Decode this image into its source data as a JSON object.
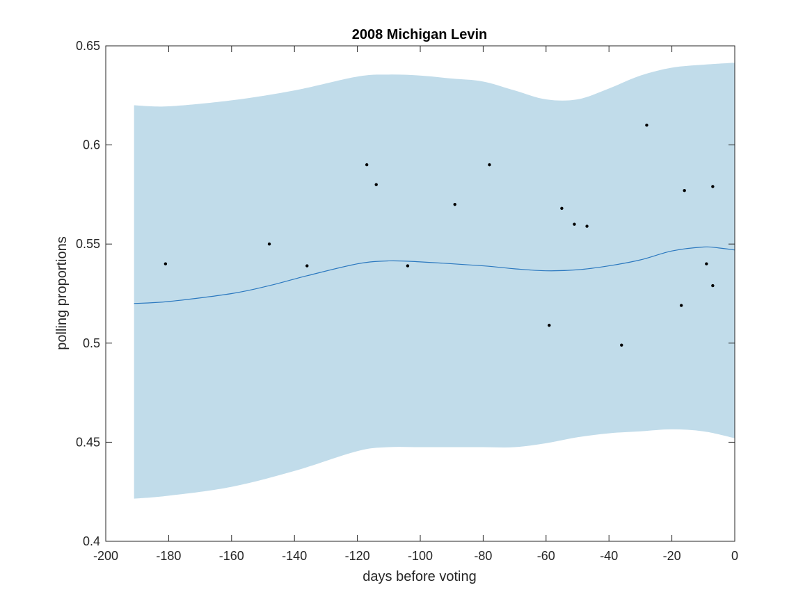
{
  "chart_data": {
    "type": "scatter",
    "title": "2008 Michigan Levin",
    "xlabel": "days before voting",
    "ylabel": "polling proportions",
    "xlim": [
      -200,
      0
    ],
    "ylim": [
      0.4,
      0.65
    ],
    "xticks": [
      -200,
      -180,
      -160,
      -140,
      -120,
      -100,
      -80,
      -60,
      -40,
      -20,
      0
    ],
    "xtick_labels": [
      "-200",
      "-180",
      "-160",
      "-140",
      "-120",
      "-100",
      "-80",
      "-60",
      "-40",
      "-20",
      "0"
    ],
    "yticks": [
      0.4,
      0.45,
      0.5,
      0.55,
      0.6,
      0.65
    ],
    "ytick_labels": [
      "0.4",
      "0.45",
      "0.5",
      "0.55",
      "0.6",
      "0.65"
    ],
    "grid": false,
    "colors": {
      "band": "#c1dcea",
      "line": "#2b78bf",
      "points": "#000000",
      "axes": "#262626"
    },
    "points": [
      {
        "x": -181,
        "y": 0.54
      },
      {
        "x": -148,
        "y": 0.55
      },
      {
        "x": -136,
        "y": 0.539
      },
      {
        "x": -117,
        "y": 0.59
      },
      {
        "x": -114,
        "y": 0.58
      },
      {
        "x": -104,
        "y": 0.539
      },
      {
        "x": -89,
        "y": 0.57
      },
      {
        "x": -78,
        "y": 0.59
      },
      {
        "x": -59,
        "y": 0.509
      },
      {
        "x": -55,
        "y": 0.568
      },
      {
        "x": -51,
        "y": 0.56
      },
      {
        "x": -47,
        "y": 0.559
      },
      {
        "x": -36,
        "y": 0.499
      },
      {
        "x": -28,
        "y": 0.61
      },
      {
        "x": -17,
        "y": 0.519
      },
      {
        "x": -16,
        "y": 0.577
      },
      {
        "x": -9,
        "y": 0.54
      },
      {
        "x": -7,
        "y": 0.579
      },
      {
        "x": -7,
        "y": 0.529
      }
    ],
    "mean_line": {
      "x": [
        -191,
        -180,
        -160,
        -148,
        -136,
        -120,
        -110,
        -100,
        -80,
        -70,
        -60,
        -50,
        -40,
        -30,
        -20,
        -10,
        -5,
        0
      ],
      "y": [
        0.52,
        0.521,
        0.525,
        0.529,
        0.534,
        0.54,
        0.5415,
        0.541,
        0.539,
        0.5375,
        0.5365,
        0.537,
        0.539,
        0.542,
        0.5465,
        0.5485,
        0.548,
        0.547
      ]
    },
    "band": {
      "x": [
        -191,
        -180,
        -160,
        -140,
        -120,
        -110,
        -100,
        -90,
        -80,
        -70,
        -60,
        -50,
        -40,
        -30,
        -20,
        -10,
        0
      ],
      "upper": [
        0.62,
        0.6195,
        0.6225,
        0.6275,
        0.6345,
        0.6355,
        0.635,
        0.6335,
        0.632,
        0.6275,
        0.623,
        0.623,
        0.6285,
        0.635,
        0.639,
        0.6405,
        0.6415
      ],
      "lower": [
        0.4215,
        0.423,
        0.4275,
        0.4355,
        0.4455,
        0.4475,
        0.4475,
        0.4475,
        0.4475,
        0.4475,
        0.4495,
        0.4525,
        0.4545,
        0.4555,
        0.4565,
        0.4555,
        0.452
      ]
    }
  }
}
